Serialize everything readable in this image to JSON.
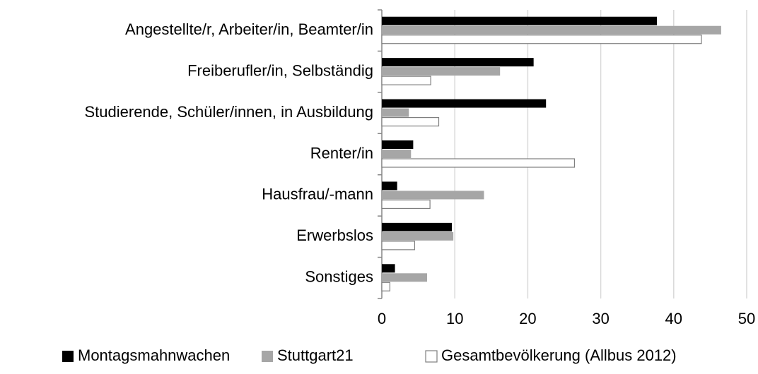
{
  "chart_data": {
    "type": "hbar",
    "categories": [
      "Angestellte/r, Arbeiter/in, Beamter/in",
      "Freiberufler/in, Selbständig",
      "Studierende, Schüler/innen, in Ausbildung",
      "Renter/in",
      "Hausfrau/-mann",
      "Erwerbslos",
      "Sonstiges"
    ],
    "series": [
      {
        "name": "Montagsmahnwachen",
        "color": "#000000",
        "values": [
          37.7,
          20.8,
          22.5,
          4.3,
          2.1,
          9.6,
          1.8
        ]
      },
      {
        "name": "Stuttgart21",
        "color": "#a6a6a6",
        "values": [
          46.5,
          16.2,
          3.7,
          4.0,
          14.0,
          9.8,
          6.2
        ]
      },
      {
        "name": "Gesamtbevölkerung (Allbus 2012)",
        "color": "#ffffff",
        "values": [
          43.8,
          6.7,
          7.8,
          26.4,
          6.6,
          4.5,
          1.1
        ]
      }
    ],
    "xlim": [
      0,
      50
    ],
    "xticks": [
      0,
      10,
      20,
      30,
      40,
      50
    ],
    "grid": true,
    "legend": "bottom"
  }
}
